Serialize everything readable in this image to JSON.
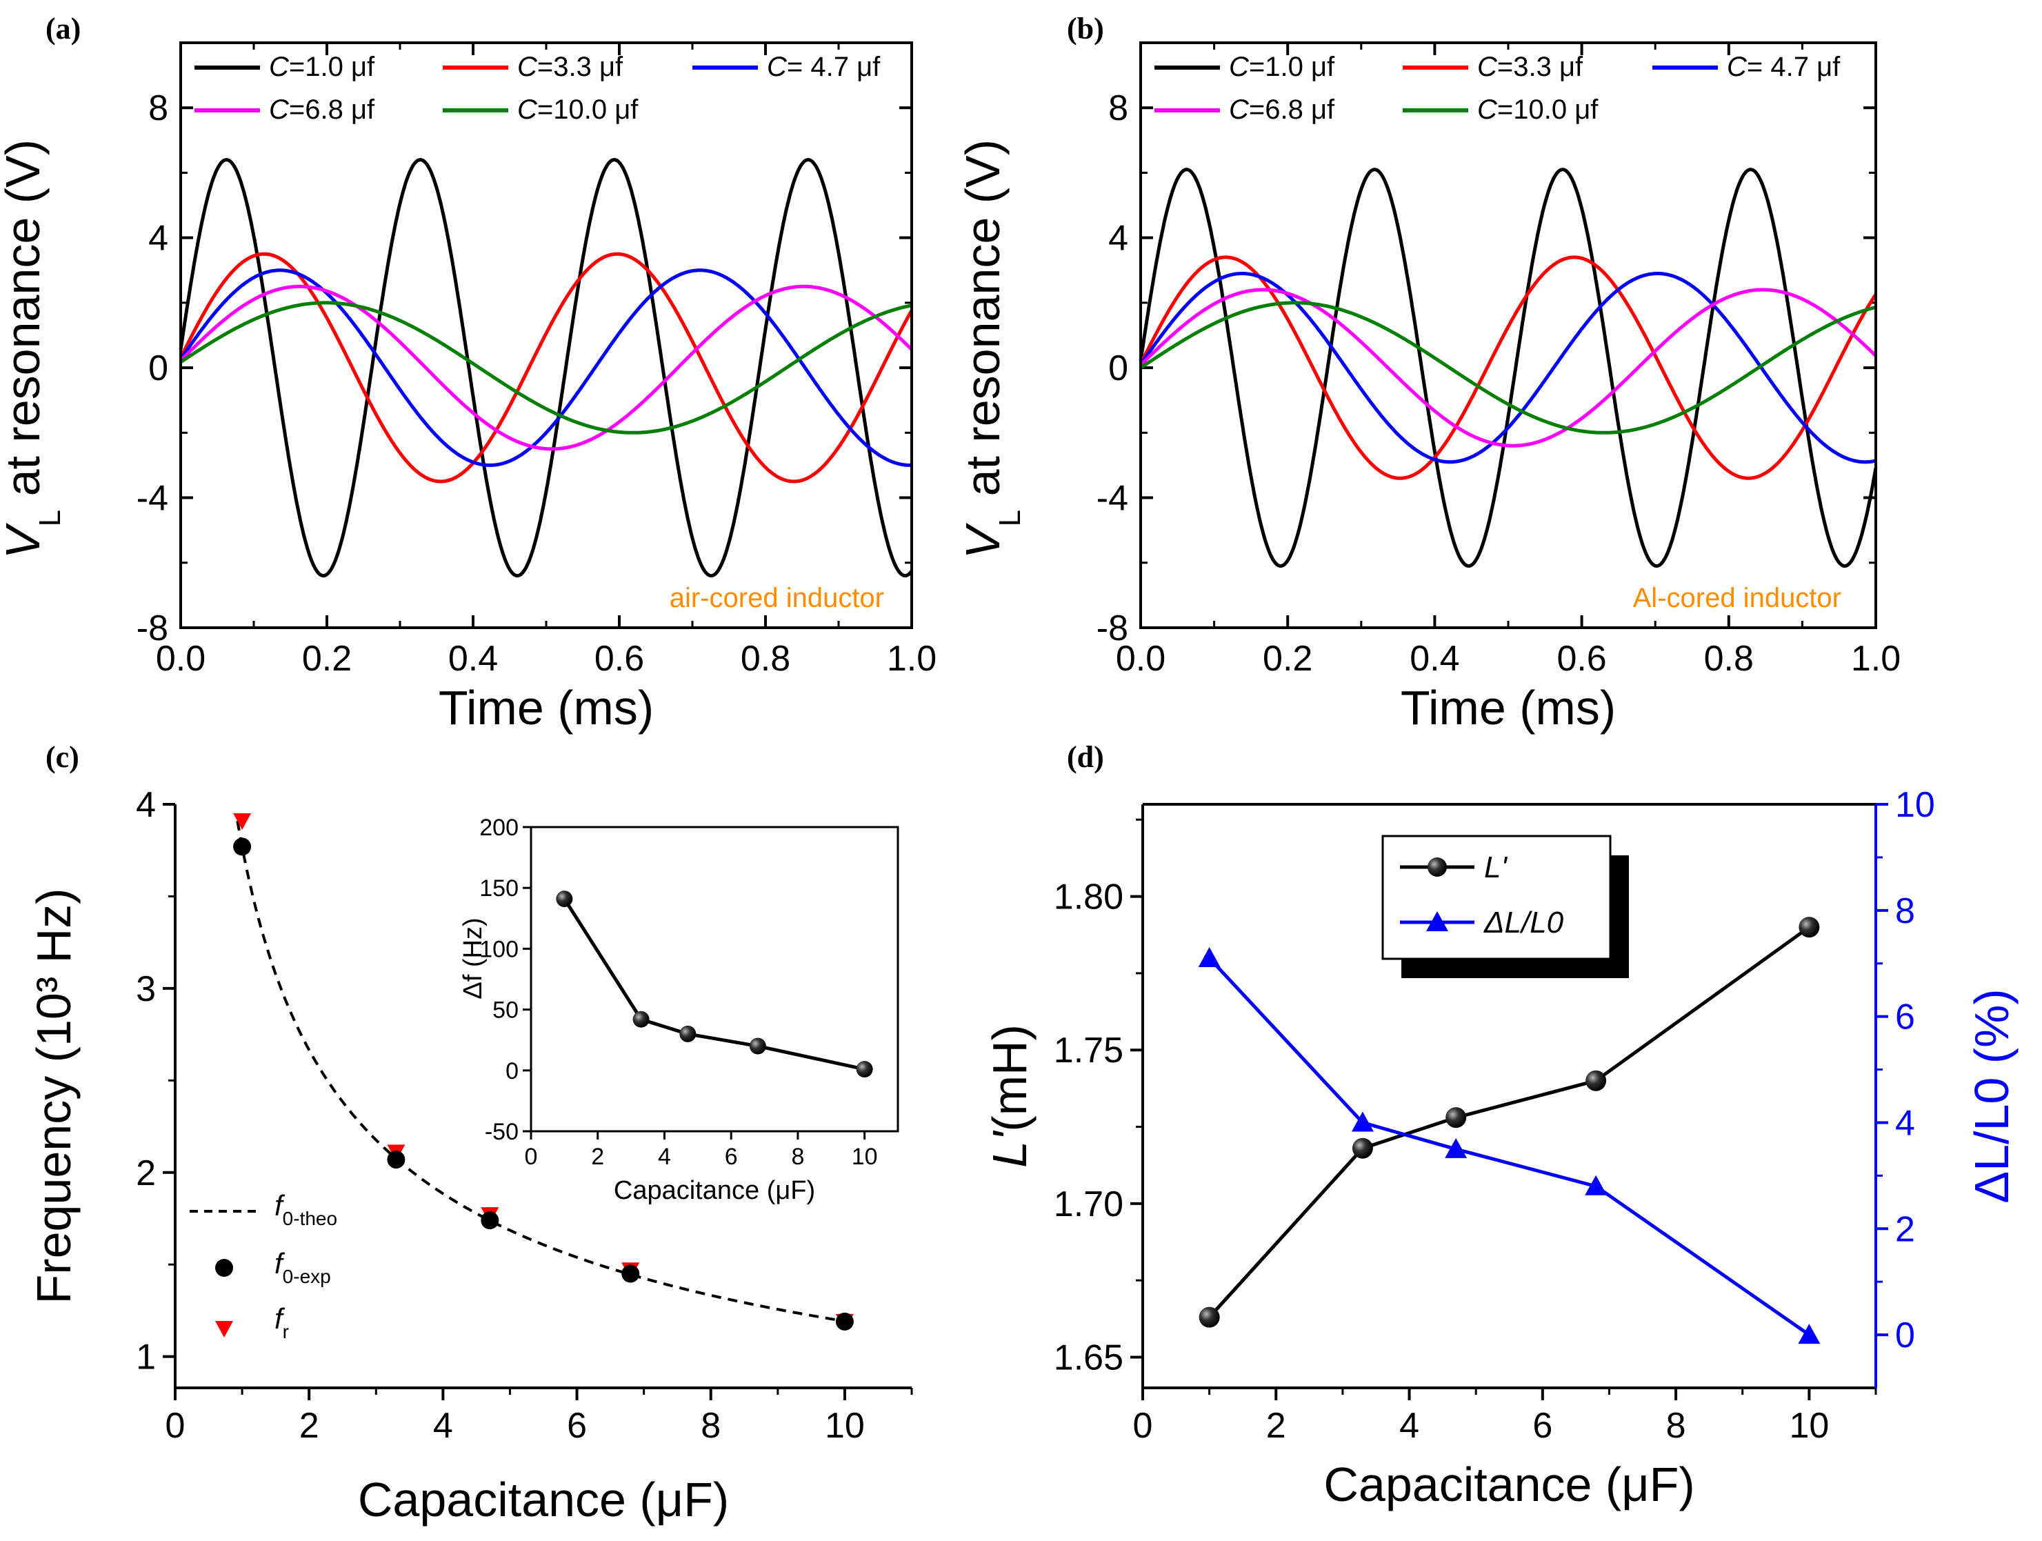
{
  "chart_data": [
    {
      "panel": "(a)",
      "type": "line",
      "title": "",
      "annotation": "air-cored inductor",
      "xlabel": "Time (ms)",
      "ylabel_main": "V",
      "ylabel_sub": "L",
      "ylabel_rest": " at resonance (V)",
      "xlim": [
        0,
        1
      ],
      "ylim": [
        -8,
        10
      ],
      "xticks": [
        "0.0",
        "0.2",
        "0.4",
        "0.6",
        "0.8",
        "1.0"
      ],
      "yticks": [
        "-8",
        "-4",
        "0",
        "4",
        "8"
      ],
      "legend_location": "top",
      "series": [
        {
          "name": "C=1.0 μf",
          "label_c": "C",
          "label_rest": "=1.0 μf",
          "color": "#000000",
          "amplitude": 6.4,
          "frequency_khz": 3.77,
          "phase_deg": 5
        },
        {
          "name": "C=3.3 μf",
          "label_c": "C",
          "label_rest": "=3.3 μf",
          "color": "#ff0000",
          "amplitude": 3.5,
          "frequency_khz": 2.07,
          "phase_deg": 5
        },
        {
          "name": "C= 4.7 μf",
          "label_c": "C",
          "label_rest": "= 4.7 μf",
          "color": "#0000ff",
          "amplitude": 3.0,
          "frequency_khz": 1.74,
          "phase_deg": 5
        },
        {
          "name": "C=6.8 μf",
          "label_c": "C",
          "label_rest": "=6.8 μf",
          "color": "#ff00ff",
          "amplitude": 2.5,
          "frequency_khz": 1.45,
          "phase_deg": 5
        },
        {
          "name": "C=10.0 μf",
          "label_c": "C",
          "label_rest": "=10.0 μf",
          "color": "#007f00",
          "amplitude": 2.0,
          "frequency_khz": 1.19,
          "phase_deg": 5
        }
      ]
    },
    {
      "panel": "(b)",
      "type": "line",
      "title": "",
      "annotation": "Al-cored inductor",
      "xlabel": "Time (ms)",
      "ylabel_main": "V",
      "ylabel_sub": "L",
      "ylabel_rest": " at resonance (V)",
      "xlim": [
        0,
        1
      ],
      "ylim": [
        -8,
        10
      ],
      "xticks": [
        "0.0",
        "0.2",
        "0.4",
        "0.6",
        "0.8",
        "1.0"
      ],
      "yticks": [
        "-8",
        "-4",
        "0",
        "4",
        "8"
      ],
      "legend_location": "top",
      "series": [
        {
          "name": "C=1.0 μf",
          "label_c": "C",
          "label_rest": "=1.0 μf",
          "color": "#000000",
          "amplitude": 6.1,
          "frequency_khz": 3.91,
          "phase_deg": 2
        },
        {
          "name": "C=3.3 μf",
          "label_c": "C",
          "label_rest": "=3.3 μf",
          "color": "#ff0000",
          "amplitude": 3.4,
          "frequency_khz": 2.11,
          "phase_deg": 2
        },
        {
          "name": "C= 4.7 μf",
          "label_c": "C",
          "label_rest": "= 4.7 μf",
          "color": "#0000ff",
          "amplitude": 2.9,
          "frequency_khz": 1.77,
          "phase_deg": 2
        },
        {
          "name": "C=6.8 μf",
          "label_c": "C",
          "label_rest": "=6.8 μf",
          "color": "#ff00ff",
          "amplitude": 2.4,
          "frequency_khz": 1.47,
          "phase_deg": 2
        },
        {
          "name": "C=10.0 μf",
          "label_c": "C",
          "label_rest": "=10.0 μf",
          "color": "#007f00",
          "amplitude": 2.0,
          "frequency_khz": 1.19,
          "phase_deg": 0
        }
      ]
    },
    {
      "panel": "(c)",
      "type": "scatter",
      "xlabel": "Capacitance (μF)",
      "ylabel": "Frequency (10³ Hz)",
      "xlim": [
        0,
        11
      ],
      "ylim": [
        0.83,
        4
      ],
      "xticks": [
        "0",
        "2",
        "4",
        "6",
        "8",
        "10"
      ],
      "yticks": [
        "1",
        "2",
        "3",
        "4"
      ],
      "legend_location": "bottom-left",
      "series": [
        {
          "name": "f0-theo",
          "label_main": "f",
          "label_sub": "0-theo",
          "style": "dashed",
          "color": "#000000",
          "formula": "f = 3.77 / sqrt(C)"
        },
        {
          "name": "f0-exp",
          "label_main": "f",
          "label_sub": "0-exp",
          "style": "circle",
          "color": "#000000",
          "x": [
            1.0,
            3.3,
            4.7,
            6.8,
            10.0
          ],
          "y": [
            3.77,
            2.07,
            1.74,
            1.45,
            1.19
          ]
        },
        {
          "name": "fr",
          "label_main": "f",
          "label_sub": "r",
          "style": "triangle-down",
          "color": "#ff0000",
          "x": [
            1.0,
            3.3,
            4.7,
            6.8,
            10.0
          ],
          "y": [
            3.91,
            2.11,
            1.77,
            1.47,
            1.19
          ]
        }
      ],
      "inset": {
        "type": "line",
        "xlabel": "Capacitance (μF)",
        "ylabel": "Δf (Hz)",
        "xlim": [
          0,
          11
        ],
        "ylim": [
          -50,
          200
        ],
        "xticks": [
          "0",
          "2",
          "4",
          "6",
          "8",
          "10"
        ],
        "yticks": [
          "-50",
          "0",
          "50",
          "100",
          "150",
          "200"
        ],
        "x": [
          1.0,
          3.3,
          4.7,
          6.8,
          10.0
        ],
        "y": [
          141,
          42,
          30,
          20,
          1
        ]
      }
    },
    {
      "panel": "(d)",
      "type": "line",
      "xlabel": "Capacitance (μF)",
      "ylabel_left": "L'(mH)",
      "ylabel_left_main": "L'",
      "ylabel_left_rest": "(mH)",
      "ylabel_right": "ΔL/L0 (%)",
      "xlim": [
        0,
        11
      ],
      "ylim_left": [
        1.64,
        1.83
      ],
      "ylim_right": [
        -1,
        10
      ],
      "xticks": [
        "0",
        "2",
        "4",
        "6",
        "8",
        "10"
      ],
      "yticks_left": [
        "1.65",
        "1.70",
        "1.75",
        "1.80"
      ],
      "yticks_right": [
        "0",
        "2",
        "4",
        "6",
        "8",
        "10"
      ],
      "legend_location": "top-center",
      "series": [
        {
          "name": "L'",
          "axis": "left",
          "color": "#000000",
          "marker": "sphere",
          "x": [
            1.0,
            3.3,
            4.7,
            6.8,
            10.0
          ],
          "y": [
            1.663,
            1.718,
            1.728,
            1.74,
            1.79
          ]
        },
        {
          "name": "ΔL/L0",
          "axis": "right",
          "color": "#0000ff",
          "marker": "triangle-up",
          "x": [
            1.0,
            3.3,
            4.7,
            6.8,
            10.0
          ],
          "y": [
            7.1,
            4.0,
            3.5,
            2.8,
            0.0
          ]
        }
      ]
    }
  ]
}
